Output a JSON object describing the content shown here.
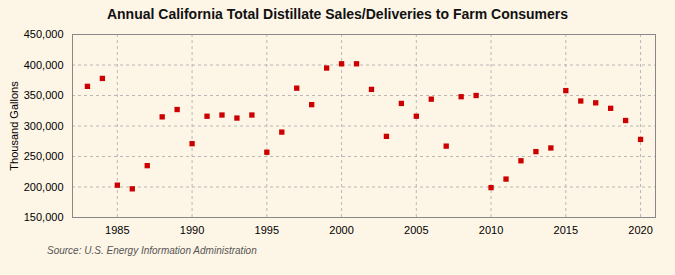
{
  "chart_data": {
    "type": "scatter",
    "title": "Annual California Total Distillate Sales/Deliveries to Farm Consumers",
    "ylabel": "Thousand Gallons",
    "source": "Source: U.S. Energy Information Administration",
    "x": [
      1983,
      1984,
      1985,
      1986,
      1987,
      1988,
      1989,
      1990,
      1991,
      1992,
      1993,
      1994,
      1995,
      1996,
      1997,
      1998,
      1999,
      2000,
      2001,
      2002,
      2003,
      2004,
      2005,
      2006,
      2007,
      2008,
      2009,
      2010,
      2011,
      2012,
      2013,
      2014,
      2015,
      2016,
      2017,
      2018,
      2019,
      2020
    ],
    "values": [
      365000,
      378000,
      203000,
      197000,
      235000,
      315000,
      327000,
      271000,
      316000,
      318000,
      313000,
      318000,
      257000,
      290000,
      362000,
      335000,
      395000,
      402000,
      402000,
      360000,
      283000,
      337000,
      316000,
      344000,
      267000,
      348000,
      350000,
      199000,
      213000,
      243000,
      258000,
      264000,
      358000,
      341000,
      338000,
      329000,
      309000,
      278000
    ],
    "color": "#cc0000",
    "marker": "square",
    "xlim": [
      1982,
      2021
    ],
    "xticks": [
      1985,
      1990,
      1995,
      2000,
      2005,
      2010,
      2015,
      2020
    ],
    "ylim": [
      150000,
      450000
    ],
    "yticks": [
      {
        "value": 150000,
        "label": "150,000"
      },
      {
        "value": 200000,
        "label": "200,000"
      },
      {
        "value": 250000,
        "label": "250,000"
      },
      {
        "value": 300000,
        "label": "300,000"
      },
      {
        "value": 350000,
        "label": "350,000"
      },
      {
        "value": 400000,
        "label": "400,000"
      },
      {
        "value": 450000,
        "label": "450,000"
      }
    ],
    "grid": true
  }
}
